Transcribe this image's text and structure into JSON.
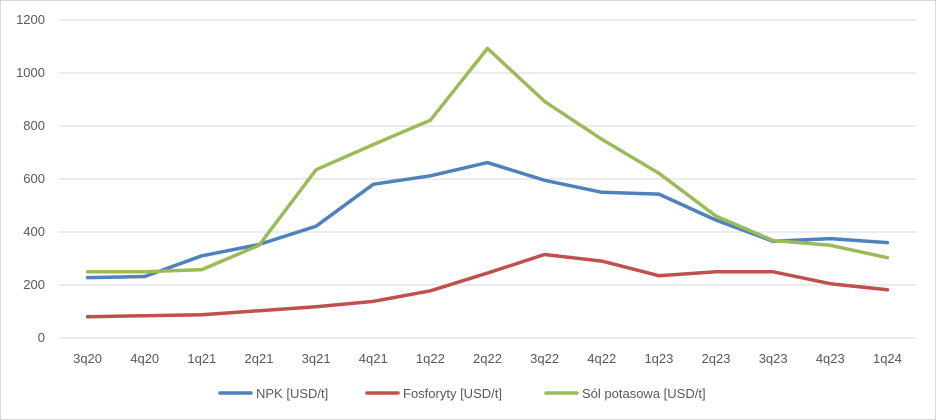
{
  "chart_data": {
    "type": "line",
    "title": "",
    "xlabel": "",
    "ylabel": "",
    "categories": [
      "3q20",
      "4q20",
      "1q21",
      "2q21",
      "3q21",
      "4q21",
      "1q22",
      "2q22",
      "3q22",
      "4q22",
      "1q23",
      "2q23",
      "3q23",
      "4q23",
      "1q24"
    ],
    "ylim": [
      0,
      1200
    ],
    "yticks": [
      "0",
      "200",
      "400",
      "600",
      "800",
      "1000",
      "1200"
    ],
    "grid": true,
    "legend_position": "bottom",
    "series": [
      {
        "name": "NPK  [USD/t]",
        "color": "#4f81bd",
        "values": [
          228,
          232,
          310,
          353,
          422,
          580,
          612,
          662,
          595,
          550,
          543,
          445,
          365,
          375,
          360
        ]
      },
      {
        "name": "Fosforyty [USD/t]",
        "color": "#c0504d",
        "values": [
          80,
          84,
          88,
          103,
          118,
          138,
          178,
          245,
          315,
          290,
          235,
          250,
          250,
          205,
          182
        ]
      },
      {
        "name": "Sól potasowa [USD/t]",
        "color": "#9bbb59",
        "values": [
          250,
          250,
          258,
          350,
          635,
          730,
          822,
          1093,
          893,
          750,
          622,
          460,
          368,
          350,
          303
        ]
      }
    ]
  }
}
